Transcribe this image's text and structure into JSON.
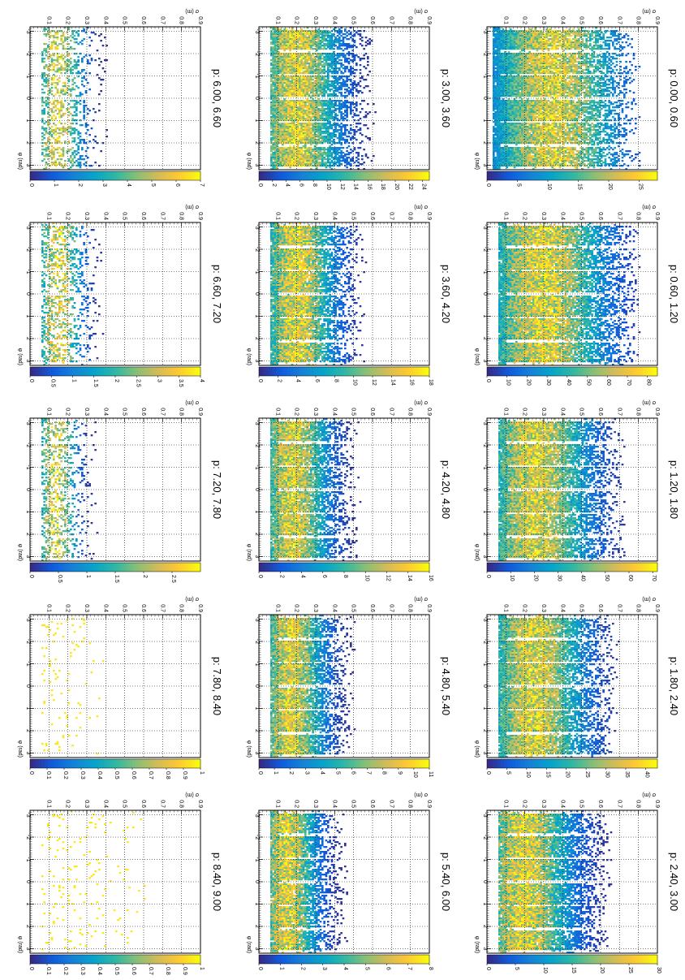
{
  "chart_data": [
    {
      "type": "heatmap",
      "title": "p: 0.00, 0.60",
      "xlabel": "φ (rad)",
      "ylabel": "σ (m)",
      "xlim": [
        -3.2,
        3.2
      ],
      "ylim": [
        0,
        0.9
      ],
      "zlim": [
        0,
        28
      ],
      "ztick_labels": [
        "0",
        "5",
        "10",
        "15",
        "20",
        "25"
      ],
      "xtick_labels": [
        "-3",
        "-2",
        "-1",
        "0",
        "1",
        "2",
        "3"
      ],
      "ytick_labels": [
        "0.1",
        "0.2",
        "0.3",
        "0.4",
        "0.5",
        "0.6",
        "0.7",
        "0.8",
        "0.9"
      ],
      "grid": true,
      "band": [
        0.05,
        0.7
      ],
      "peak": 0.35
    },
    {
      "type": "heatmap",
      "title": "p: 0.60, 1.20",
      "xlabel": "φ (rad)",
      "ylabel": "σ (m)",
      "xlim": [
        -3.2,
        3.2
      ],
      "ylim": [
        0,
        0.9
      ],
      "zlim": [
        0,
        85
      ],
      "ztick_labels": [
        "0",
        "10",
        "20",
        "30",
        "40",
        "50",
        "60",
        "70",
        "80"
      ],
      "xtick_labels": [
        "-3",
        "-2",
        "-1",
        "0",
        "1",
        "2",
        "3"
      ],
      "ytick_labels": [
        "0.1",
        "0.2",
        "0.3",
        "0.4",
        "0.5",
        "0.6",
        "0.7",
        "0.8",
        "0.9"
      ],
      "grid": true,
      "band": [
        0.08,
        0.7
      ],
      "peak": 0.3
    },
    {
      "type": "heatmap",
      "title": "p: 1.20, 1.80",
      "xlabel": "φ (rad)",
      "ylabel": "σ (m)",
      "xlim": [
        -3.2,
        3.2
      ],
      "ylim": [
        0,
        0.9
      ],
      "zlim": [
        0,
        72
      ],
      "ztick_labels": [
        "0",
        "10",
        "20",
        "30",
        "40",
        "50",
        "60",
        "70"
      ],
      "xtick_labels": [
        "-3",
        "-2",
        "-1",
        "0",
        "1",
        "2",
        "3"
      ],
      "ytick_labels": [
        "0.1",
        "0.2",
        "0.3",
        "0.4",
        "0.5",
        "0.6",
        "0.7",
        "0.8",
        "0.9"
      ],
      "grid": true,
      "band": [
        0.08,
        0.62
      ],
      "peak": 0.26
    },
    {
      "type": "heatmap",
      "title": "p: 1.80, 2.40",
      "xlabel": "φ (rad)",
      "ylabel": "σ (m)",
      "xlim": [
        -3.2,
        3.2
      ],
      "ylim": [
        0,
        0.9
      ],
      "zlim": [
        0,
        43
      ],
      "ztick_labels": [
        "0",
        "5",
        "10",
        "15",
        "20",
        "25",
        "30",
        "35",
        "40"
      ],
      "xtick_labels": [
        "-3",
        "-2",
        "-1",
        "0",
        "1",
        "2",
        "3"
      ],
      "ytick_labels": [
        "0.1",
        "0.2",
        "0.3",
        "0.4",
        "0.5",
        "0.6",
        "0.7",
        "0.8",
        "0.9"
      ],
      "grid": true,
      "band": [
        0.08,
        0.58
      ],
      "peak": 0.25
    },
    {
      "type": "heatmap",
      "title": "p: 2.40, 3.00",
      "xlabel": "φ (rad)",
      "ylabel": "σ (m)",
      "xlim": [
        -3.2,
        3.2
      ],
      "ylim": [
        0,
        0.9
      ],
      "zlim": [
        0,
        30
      ],
      "ztick_labels": [
        "0",
        "5",
        "10",
        "15",
        "20",
        "25",
        "30"
      ],
      "xtick_labels": [
        "-3",
        "-2",
        "-1",
        "0",
        "1",
        "2",
        "3"
      ],
      "ytick_labels": [
        "0.1",
        "0.2",
        "0.3",
        "0.4",
        "0.5",
        "0.6",
        "0.7",
        "0.8",
        "0.9"
      ],
      "grid": true,
      "band": [
        0.08,
        0.55
      ],
      "peak": 0.2
    },
    {
      "type": "heatmap",
      "title": "p: 3.00, 3.60",
      "xlabel": "φ (rad)",
      "ylabel": "σ (m)",
      "xlim": [
        -3.2,
        3.2
      ],
      "ylim": [
        0,
        0.9
      ],
      "zlim": [
        0,
        25
      ],
      "ztick_labels": [
        "0",
        "2",
        "4",
        "6",
        "8",
        "10",
        "12",
        "14",
        "16",
        "18",
        "20",
        "22",
        "24"
      ],
      "xtick_labels": [
        "-3",
        "-2",
        "-1",
        "0",
        "1",
        "2",
        "3"
      ],
      "ytick_labels": [
        "0.1",
        "0.2",
        "0.3",
        "0.4",
        "0.5",
        "0.6",
        "0.7",
        "0.8",
        "0.9"
      ],
      "grid": true,
      "band": [
        0.08,
        0.5
      ],
      "peak": 0.2
    },
    {
      "type": "heatmap",
      "title": "p: 3.60, 4.20",
      "xlabel": "φ (rad)",
      "ylabel": "σ (m)",
      "xlim": [
        -3.2,
        3.2
      ],
      "ylim": [
        0,
        0.9
      ],
      "zlim": [
        0,
        18
      ],
      "ztick_labels": [
        "0",
        "2",
        "4",
        "6",
        "8",
        "10",
        "12",
        "14",
        "16",
        "18"
      ],
      "xtick_labels": [
        "-3",
        "-2",
        "-1",
        "0",
        "1",
        "2",
        "3"
      ],
      "ytick_labels": [
        "0.1",
        "0.2",
        "0.3",
        "0.4",
        "0.5",
        "0.6",
        "0.7",
        "0.8",
        "0.9"
      ],
      "grid": true,
      "band": [
        0.08,
        0.45
      ],
      "peak": 0.2
    },
    {
      "type": "heatmap",
      "title": "p: 4.20, 4.80",
      "xlabel": "φ (rad)",
      "ylabel": "σ (m)",
      "xlim": [
        -3.2,
        3.2
      ],
      "ylim": [
        0,
        0.9
      ],
      "zlim": [
        0,
        16
      ],
      "ztick_labels": [
        "0",
        "2",
        "4",
        "6",
        "8",
        "10",
        "12",
        "14",
        "16"
      ],
      "xtick_labels": [
        "-3",
        "-2",
        "-1",
        "0",
        "1",
        "2",
        "3"
      ],
      "ytick_labels": [
        "0.1",
        "0.2",
        "0.3",
        "0.4",
        "0.5",
        "0.6",
        "0.7",
        "0.8",
        "0.9"
      ],
      "grid": true,
      "band": [
        0.08,
        0.42
      ],
      "peak": 0.18
    },
    {
      "type": "heatmap",
      "title": "p: 4.80, 5.40",
      "xlabel": "φ (rad)",
      "ylabel": "σ (m)",
      "xlim": [
        -3.2,
        3.2
      ],
      "ylim": [
        0,
        0.9
      ],
      "zlim": [
        0,
        11
      ],
      "ztick_labels": [
        "0",
        "1",
        "2",
        "3",
        "4",
        "5",
        "6",
        "7",
        "8",
        "9",
        "10",
        "11"
      ],
      "xtick_labels": [
        "-3",
        "-2",
        "-1",
        "0",
        "1",
        "2",
        "3"
      ],
      "ytick_labels": [
        "0.1",
        "0.2",
        "0.3",
        "0.4",
        "0.5",
        "0.6",
        "0.7",
        "0.8",
        "0.9"
      ],
      "grid": true,
      "band": [
        0.08,
        0.4
      ],
      "peak": 0.17
    },
    {
      "type": "heatmap",
      "title": "p: 5.40, 6.00",
      "xlabel": "φ (rad)",
      "ylabel": "σ (m)",
      "xlim": [
        -3.2,
        3.2
      ],
      "ylim": [
        0,
        0.9
      ],
      "zlim": [
        0,
        8
      ],
      "ztick_labels": [
        "0",
        "1",
        "2",
        "3",
        "4",
        "5",
        "6",
        "7",
        "8"
      ],
      "xtick_labels": [
        "-3",
        "-2",
        "-1",
        "0",
        "1",
        "2",
        "3"
      ],
      "ytick_labels": [
        "0.1",
        "0.2",
        "0.3",
        "0.4",
        "0.5",
        "0.6",
        "0.7",
        "0.8",
        "0.9"
      ],
      "grid": true,
      "band": [
        0.08,
        0.36
      ],
      "peak": 0.15
    },
    {
      "type": "heatmap",
      "title": "p: 6.00, 6.60",
      "xlabel": "φ (rad)",
      "ylabel": "σ (m)",
      "xlim": [
        -3.2,
        3.2
      ],
      "ylim": [
        0,
        0.9
      ],
      "zlim": [
        0,
        7
      ],
      "ztick_labels": [
        "0",
        "1",
        "2",
        "3",
        "4",
        "5",
        "6",
        "7"
      ],
      "xtick_labels": [
        "-3",
        "-2",
        "-1",
        "0",
        "1",
        "2",
        "3"
      ],
      "ytick_labels": [
        "0.1",
        "0.2",
        "0.3",
        "0.4",
        "0.5",
        "0.6",
        "0.7",
        "0.8",
        "0.9"
      ],
      "grid": true,
      "band": [
        0.08,
        0.3
      ],
      "peak": 0.15
    },
    {
      "type": "heatmap",
      "title": "p: 6.60, 7.20",
      "xlabel": "φ (rad)",
      "ylabel": "σ (m)",
      "xlim": [
        -3.2,
        3.2
      ],
      "ylim": [
        0,
        0.9
      ],
      "zlim": [
        0,
        4
      ],
      "ztick_labels": [
        "0",
        "0.5",
        "1",
        "1.5",
        "2",
        "2.5",
        "3",
        "3.5",
        "4"
      ],
      "xtick_labels": [
        "-3",
        "-2",
        "-1",
        "0",
        "1",
        "2",
        "3"
      ],
      "ytick_labels": [
        "0.1",
        "0.2",
        "0.3",
        "0.4",
        "0.5",
        "0.6",
        "0.7",
        "0.8",
        "0.9"
      ],
      "grid": true,
      "band": [
        0.08,
        0.28
      ],
      "peak": 0.15
    },
    {
      "type": "heatmap",
      "title": "p: 7.20, 7.80",
      "xlabel": "φ (rad)",
      "ylabel": "σ (m)",
      "xlim": [
        -3.2,
        3.2
      ],
      "ylim": [
        0,
        0.9
      ],
      "zlim": [
        0,
        3
      ],
      "ztick_labels": [
        "0",
        "0.5",
        "1",
        "1.5",
        "2",
        "2.5"
      ],
      "xtick_labels": [
        "-3",
        "-2",
        "-1",
        "0",
        "1",
        "2",
        "3"
      ],
      "ytick_labels": [
        "0.1",
        "0.2",
        "0.3",
        "0.4",
        "0.5",
        "0.6",
        "0.7",
        "0.8",
        "0.9"
      ],
      "grid": true,
      "band": [
        0.08,
        0.25
      ],
      "peak": 0.14
    },
    {
      "type": "heatmap",
      "title": "p: 7.80, 8.40",
      "xlabel": "φ (rad)",
      "ylabel": "σ (m)",
      "xlim": [
        -3.2,
        3.2
      ],
      "ylim": [
        0,
        0.9
      ],
      "zlim": [
        0,
        1
      ],
      "ztick_labels": [
        "0",
        "0.1",
        "0.2",
        "0.3",
        "0.4",
        "0.5",
        "0.6",
        "0.7",
        "0.8",
        "0.9",
        "1"
      ],
      "xtick_labels": [
        "-3",
        "-2",
        "-1",
        "0",
        "1",
        "2",
        "3"
      ],
      "ytick_labels": [
        "0.1",
        "0.2",
        "0.3",
        "0.4",
        "0.5",
        "0.6",
        "0.7",
        "0.8",
        "0.9"
      ],
      "grid": true,
      "band": [
        0.08,
        0.3
      ],
      "peak": 0.12
    },
    {
      "type": "heatmap",
      "title": "p: 8.40, 9.00",
      "xlabel": "φ (rad)",
      "ylabel": "σ (m)",
      "xlim": [
        -3.2,
        3.2
      ],
      "ylim": [
        0,
        0.9
      ],
      "zlim": [
        0,
        1
      ],
      "ztick_labels": [
        "0",
        "0.1",
        "0.2",
        "0.3",
        "0.4",
        "0.5",
        "0.6",
        "0.7",
        "0.8",
        "0.9",
        "1"
      ],
      "xtick_labels": [
        "-3",
        "-2",
        "-1",
        "0",
        "1",
        "2",
        "3"
      ],
      "ytick_labels": [
        "0.1",
        "0.2",
        "0.3",
        "0.4",
        "0.5",
        "0.6",
        "0.7",
        "0.8",
        "0.9"
      ],
      "grid": true,
      "band": [
        0.08,
        0.55
      ],
      "peak": 0.12
    }
  ],
  "colors": {
    "palette": [
      "#352a87",
      "#0f5cdd",
      "#1481d6",
      "#06a4ca",
      "#2eb7a4",
      "#87bf77",
      "#d1bb59",
      "#fec832",
      "#f9fb0e"
    ],
    "grid": "#000000",
    "frame": "#000000"
  }
}
